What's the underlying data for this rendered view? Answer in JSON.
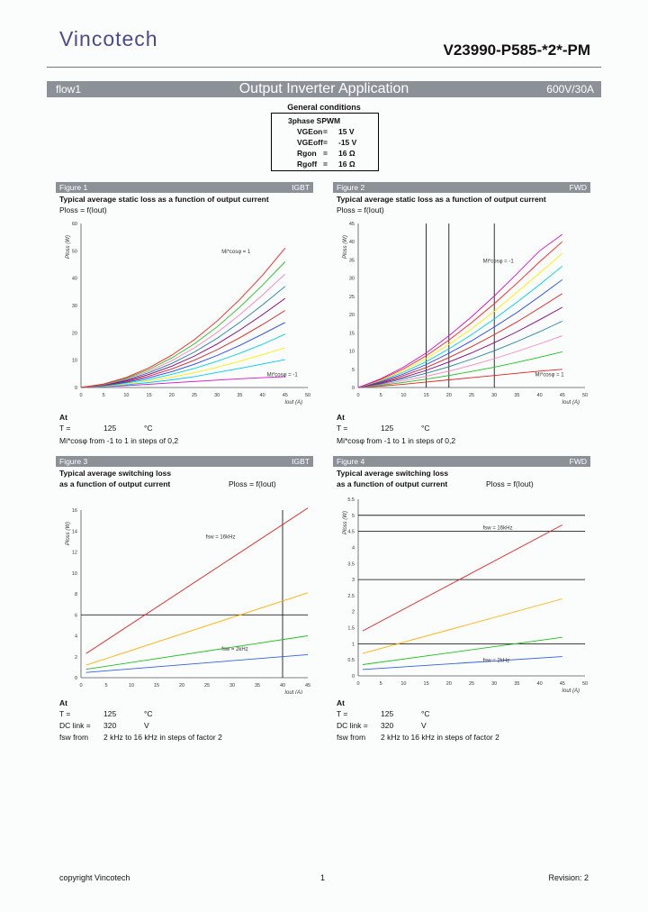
{
  "header": {
    "logo": "Vincotech",
    "part_number": "V23990-P585-*2*-PM",
    "section_left": "flow1",
    "section_title": "Output Inverter Application",
    "section_right": "600V/30A"
  },
  "general_conditions": {
    "title": "General conditions",
    "mode": "3phase SPWM",
    "rows": [
      {
        "name": "VGEon",
        "eq": "=",
        "value": "15 V"
      },
      {
        "name": "VGEoff",
        "eq": "=",
        "value": "-15 V"
      },
      {
        "name": "Rgon",
        "eq": "=",
        "value": "16 Ω"
      },
      {
        "name": "Rgoff",
        "eq": "=",
        "value": "16 Ω"
      }
    ]
  },
  "figures": [
    {
      "label": "Figure 1",
      "tag": "IGBT",
      "title1": "Typical average static loss as a function of output current",
      "title2": "",
      "formula": "Ploss = f(Iout)",
      "at": "At",
      "t_label": "T =",
      "t_value": "125",
      "t_unit": "°C",
      "note": "Mi*cosφ from -1 to 1 in steps of 0,2",
      "extra": []
    },
    {
      "label": "Figure 2",
      "tag": "FWD",
      "title1": "Typical average static loss as a function of output current",
      "title2": "",
      "formula": "Ploss = f(Iout)",
      "at": "At",
      "t_label": "T =",
      "t_value": "125",
      "t_unit": "°C",
      "note": "Mi*cosφ from -1 to 1 in steps of 0,2",
      "extra": []
    },
    {
      "label": "Figure 3",
      "tag": "IGBT",
      "title1": "Typical average switching loss",
      "title2": "as a function of output current",
      "formula": "Ploss = f(Iout)",
      "at": "At",
      "t_label": "T =",
      "t_value": "125",
      "t_unit": "°C",
      "note": "",
      "extra": [
        {
          "label": "DC link =",
          "value": "320",
          "unit": "V"
        },
        {
          "label": "fsw from",
          "value": "2 kHz to 16 kHz in steps of factor 2",
          "unit": ""
        }
      ]
    },
    {
      "label": "Figure 4",
      "tag": "FWD",
      "title1": "Typical average switching loss",
      "title2": "as a function of output current",
      "formula": "Ploss = f(Iout)",
      "at": "At",
      "t_label": "T =",
      "t_value": "125",
      "t_unit": "°C",
      "note": "",
      "extra": [
        {
          "label": "DC link =",
          "value": "320",
          "unit": "V"
        },
        {
          "label": "fsw from",
          "value": "2 kHz to 16 kHz in steps of factor 2",
          "unit": ""
        }
      ]
    }
  ],
  "chart_data": [
    {
      "type": "line",
      "title": "Typical average static loss as a function of output current (IGBT)",
      "xlabel": "Iout (A)",
      "ylabel": "Ploss (W)",
      "xlim": [
        0,
        50
      ],
      "ylim": [
        0,
        60
      ],
      "xticks": [
        0,
        5,
        10,
        15,
        20,
        25,
        30,
        35,
        40,
        45,
        50
      ],
      "yticks": [
        0,
        10,
        20,
        30,
        40,
        50,
        60
      ],
      "annotations": [
        "Mi*cosφ = 1",
        "Mi*cosφ = -1"
      ],
      "x": [
        0,
        5,
        10,
        15,
        20,
        25,
        30,
        35,
        40,
        45
      ],
      "series": [
        {
          "name": "Mi*cosφ = -1",
          "color": "#d010d0",
          "values": [
            0,
            0.3,
            0.7,
            1.2,
            1.7,
            2.2,
            2.7,
            3.2,
            3.6,
            4.0
          ]
        },
        {
          "name": "Mi*cosφ = -0.8",
          "color": "#00c8ff",
          "values": [
            0,
            0.4,
            1.0,
            1.8,
            2.8,
            4.0,
            5.5,
            7.0,
            8.6,
            10.2
          ]
        },
        {
          "name": "Mi*cosφ = -0.6",
          "color": "#ffee00",
          "values": [
            0,
            0.5,
            1.3,
            2.4,
            3.8,
            5.4,
            7.4,
            9.6,
            12.0,
            14.5
          ]
        },
        {
          "name": "Mi*cosφ = -0.4",
          "color": "#00d0e0",
          "values": [
            0,
            0.6,
            1.6,
            3.0,
            4.8,
            7.0,
            9.6,
            12.5,
            15.8,
            19.5
          ]
        },
        {
          "name": "Mi*cosφ = -0.2",
          "color": "#2040ff",
          "values": [
            0,
            0.7,
            1.9,
            3.6,
            5.8,
            8.5,
            11.7,
            15.4,
            19.5,
            23.8
          ]
        },
        {
          "name": "Mi*cosφ = 0",
          "color": "#e02020",
          "values": [
            0,
            0.8,
            2.2,
            4.2,
            6.8,
            10.0,
            13.8,
            18.2,
            23.0,
            28.2
          ]
        },
        {
          "name": "Mi*cosφ = 0.2",
          "color": "#800080",
          "values": [
            0,
            0.9,
            2.5,
            4.8,
            7.8,
            11.5,
            15.9,
            21.0,
            26.6,
            32.6
          ]
        },
        {
          "name": "Mi*cosφ = 0.4",
          "color": "#2080a0",
          "values": [
            0,
            1.0,
            2.8,
            5.4,
            8.8,
            13.0,
            18.0,
            23.8,
            30.2,
            37.0
          ]
        },
        {
          "name": "Mi*cosφ = 0.6",
          "color": "#ff80c0",
          "values": [
            0,
            1.1,
            3.1,
            6.0,
            9.8,
            14.5,
            20.1,
            26.6,
            33.8,
            41.5
          ]
        },
        {
          "name": "Mi*cosφ = 0.8",
          "color": "#20c020",
          "values": [
            0,
            1.2,
            3.4,
            6.6,
            10.8,
            16.0,
            22.2,
            29.4,
            37.4,
            46.0
          ]
        },
        {
          "name": "Mi*cosφ = 1",
          "color": "#ff2020",
          "values": [
            0,
            1.3,
            3.7,
            7.2,
            11.8,
            17.5,
            24.3,
            32.2,
            41.0,
            51.0
          ]
        }
      ]
    },
    {
      "type": "line",
      "title": "Typical average static loss as a function of output current (FWD)",
      "xlabel": "Iout (A)",
      "ylabel": "Ploss (W)",
      "xlim": [
        0,
        50
      ],
      "ylim": [
        0,
        45
      ],
      "xticks": [
        0,
        5,
        10,
        15,
        20,
        25,
        30,
        35,
        40,
        45,
        50
      ],
      "yticks": [
        0,
        5,
        10,
        15,
        20,
        25,
        30,
        35,
        40,
        45
      ],
      "vlines": [
        15,
        20,
        30
      ],
      "annotations": [
        "Mi*cosφ = -1",
        "Mi*cosφ = 1"
      ],
      "x": [
        0,
        5,
        10,
        15,
        20,
        25,
        30,
        35,
        40,
        45
      ],
      "series": [
        {
          "name": "Mi*cosφ = 1",
          "color": "#e02020",
          "values": [
            0,
            0.4,
            0.9,
            1.5,
            2.1,
            2.7,
            3.3,
            3.9,
            4.5,
            5.0
          ]
        },
        {
          "name": "Mi*cosφ = 0.8",
          "color": "#20c020",
          "values": [
            0,
            0.6,
            1.4,
            2.3,
            3.3,
            4.4,
            5.6,
            6.9,
            8.3,
            9.8
          ]
        },
        {
          "name": "Mi*cosφ = 0.6",
          "color": "#ff80c0",
          "values": [
            0,
            0.8,
            1.9,
            3.1,
            4.5,
            6.1,
            7.9,
            9.9,
            12.0,
            14.2
          ]
        },
        {
          "name": "Mi*cosφ = 0.4",
          "color": "#2080a0",
          "values": [
            0,
            1.0,
            2.4,
            3.9,
            5.7,
            7.8,
            10.1,
            12.6,
            15.3,
            18.2
          ]
        },
        {
          "name": "Mi*cosφ = 0.2",
          "color": "#800080",
          "values": [
            0,
            1.2,
            2.8,
            4.7,
            7.0,
            9.5,
            12.3,
            15.3,
            18.6,
            22.0
          ]
        },
        {
          "name": "Mi*cosφ = 0",
          "color": "#e02020",
          "values": [
            0,
            1.4,
            3.3,
            5.5,
            8.2,
            11.2,
            14.5,
            18.0,
            21.8,
            25.8
          ]
        },
        {
          "name": "Mi*cosφ = -0.2",
          "color": "#2040ff",
          "values": [
            0,
            1.6,
            3.7,
            6.3,
            9.4,
            12.8,
            16.6,
            20.6,
            25.0,
            29.6
          ]
        },
        {
          "name": "Mi*cosφ = -0.4",
          "color": "#00d0e0",
          "values": [
            0,
            1.8,
            4.2,
            7.1,
            10.6,
            14.5,
            18.8,
            23.4,
            28.2,
            33.3
          ]
        },
        {
          "name": "Mi*cosφ = -0.6",
          "color": "#ffee00",
          "values": [
            0,
            2.0,
            4.6,
            7.9,
            11.8,
            16.1,
            20.9,
            26.1,
            31.4,
            36.8
          ]
        },
        {
          "name": "Mi*cosφ = -0.8",
          "color": "#ff2020",
          "values": [
            0,
            2.2,
            5.1,
            8.7,
            13.0,
            17.8,
            23.0,
            28.6,
            34.5,
            40.0
          ]
        },
        {
          "name": "Mi*cosφ = -1",
          "color": "#d010d0",
          "values": [
            0,
            2.4,
            5.6,
            9.5,
            14.2,
            19.4,
            25.1,
            31.2,
            37.5,
            42.0
          ]
        }
      ]
    },
    {
      "type": "line",
      "title": "Typical average switching loss as a function of output current (IGBT)",
      "xlabel": "Iout (A)",
      "ylabel": "Ploss (W)",
      "xlim": [
        0,
        45
      ],
      "ylim": [
        0,
        16
      ],
      "xticks": [
        0,
        5,
        10,
        15,
        20,
        25,
        30,
        35,
        40,
        45
      ],
      "yticks": [
        0,
        2,
        4,
        6,
        8,
        10,
        12,
        14,
        16
      ],
      "vlines": [
        40
      ],
      "hlines": [
        6
      ],
      "annotations": [
        "fsw = 16kHz",
        "fsw = 2kHz"
      ],
      "x": [
        1,
        45
      ],
      "series": [
        {
          "name": "fsw = 2kHz",
          "color": "#3060e0",
          "values": [
            0.5,
            2.2
          ]
        },
        {
          "name": "fsw = 4kHz",
          "color": "#20c020",
          "values": [
            0.8,
            4.0
          ]
        },
        {
          "name": "fsw = 8kHz",
          "color": "#ffb000",
          "values": [
            1.2,
            8.1
          ]
        },
        {
          "name": "fsw = 16kHz",
          "color": "#e02020",
          "values": [
            2.3,
            16.2
          ]
        }
      ]
    },
    {
      "type": "line",
      "title": "Typical average switching loss as a function of output current (FWD)",
      "xlabel": "Iout (A)",
      "ylabel": "Ploss (W)",
      "xlim": [
        0,
        50
      ],
      "ylim": [
        0,
        5.5
      ],
      "xticks": [
        0,
        5,
        10,
        15,
        20,
        25,
        30,
        35,
        40,
        45,
        50
      ],
      "yticks": [
        0,
        0.5,
        1.0,
        1.5,
        2.0,
        2.5,
        3.0,
        3.5,
        4.0,
        4.5,
        5.0,
        5.5
      ],
      "hlines": [
        1.0,
        3.0,
        4.5,
        5.0
      ],
      "annotations": [
        "fsw = 16kHz",
        "fsw = 2kHz"
      ],
      "x": [
        1,
        45
      ],
      "series": [
        {
          "name": "fsw = 2kHz",
          "color": "#3060e0",
          "values": [
            0.2,
            0.6
          ]
        },
        {
          "name": "fsw = 4kHz",
          "color": "#20c020",
          "values": [
            0.35,
            1.2
          ]
        },
        {
          "name": "fsw = 8kHz",
          "color": "#ffb000",
          "values": [
            0.7,
            2.4
          ]
        },
        {
          "name": "fsw = 16kHz",
          "color": "#e02020",
          "values": [
            1.4,
            4.7
          ]
        }
      ]
    }
  ],
  "footer": {
    "copyright": "copyright Vincotech",
    "page": "1",
    "revision": "Revision: 2"
  }
}
